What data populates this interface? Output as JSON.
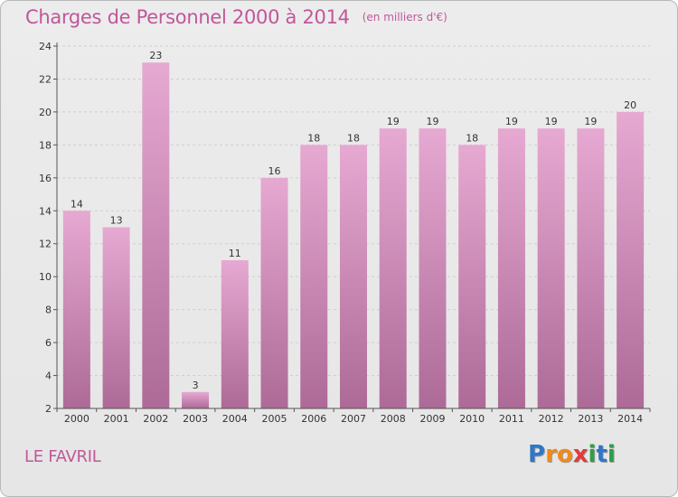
{
  "title": "Charges de Personnel 2000 à 2014",
  "subtitle": "(en milliers d'€)",
  "place": "LE FAVRIL",
  "brand": {
    "letters": [
      "P",
      "r",
      "o",
      "x",
      "i",
      "t",
      "i"
    ],
    "colors": [
      "#2f77c8",
      "#f08a1c",
      "#f08a1c",
      "#e23b3b",
      "#2f9e45",
      "#2f77c8",
      "#2f9e45"
    ]
  },
  "colors": {
    "accent": "#c0579a",
    "bar_top": "#e6a9d2",
    "bar_bottom": "#ad6a97",
    "grid": "#cfcfcf",
    "axis": "#555555",
    "text": "#333333"
  },
  "chart_data": {
    "type": "bar",
    "categories": [
      "2000",
      "2001",
      "2002",
      "2003",
      "2004",
      "2005",
      "2006",
      "2007",
      "2008",
      "2009",
      "2010",
      "2011",
      "2012",
      "2013",
      "2014"
    ],
    "values": [
      14,
      13,
      23,
      3,
      11,
      16,
      18,
      18,
      19,
      19,
      18,
      19,
      19,
      19,
      20
    ],
    "data_labels": [
      "14",
      "13",
      "23",
      "3",
      "11",
      "16",
      "18",
      "18",
      "19",
      "19",
      "18",
      "19",
      "19",
      "19",
      "20"
    ],
    "yticks": [
      2,
      4,
      6,
      8,
      10,
      12,
      14,
      16,
      18,
      20,
      22,
      24
    ],
    "ylim": [
      2,
      24
    ],
    "grid": "horizontal dashed"
  }
}
